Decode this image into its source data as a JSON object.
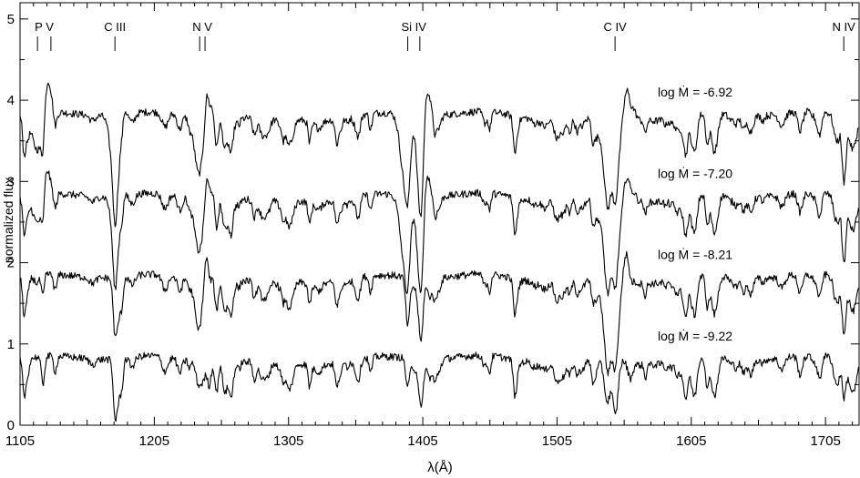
{
  "chart_data": {
    "type": "line",
    "title": "",
    "xlabel": "λ(Å)",
    "ylabel": "normalized  flux",
    "xlim": [
      1105,
      1730
    ],
    "ylim": [
      0,
      5.2
    ],
    "xticks": [
      1105,
      1205,
      1305,
      1405,
      1505,
      1605,
      1705
    ],
    "yticks": [
      0,
      1,
      2,
      3,
      4,
      5
    ],
    "grid": false,
    "line_markers": [
      {
        "label": "P V",
        "x": [
          1118,
          1128
        ]
      },
      {
        "label": "C III",
        "x": [
          1175.7
        ]
      },
      {
        "label": "N V",
        "x": [
          1238.8,
          1242.8
        ]
      },
      {
        "label": "Si IV",
        "x": [
          1393.8,
          1402.8
        ]
      },
      {
        "label": "C IV",
        "x": [
          1548.2
        ]
      },
      {
        "label": "N IV",
        "x": [
          1718.6
        ]
      }
    ],
    "series": [
      {
        "label": "log Ṁ = -6.92",
        "offset": 3.8,
        "label_x": 1580,
        "label_y": 4.1
      },
      {
        "label": "log Ṁ = -7.20",
        "offset": 2.8,
        "label_x": 1580,
        "label_y": 3.1
      },
      {
        "label": "log Ṁ = -8.21",
        "offset": 1.8,
        "label_x": 1580,
        "label_y": 2.1
      },
      {
        "label": "log Ṁ = -9.22",
        "offset": 0.8,
        "label_x": 1580,
        "label_y": 1.1
      }
    ]
  }
}
